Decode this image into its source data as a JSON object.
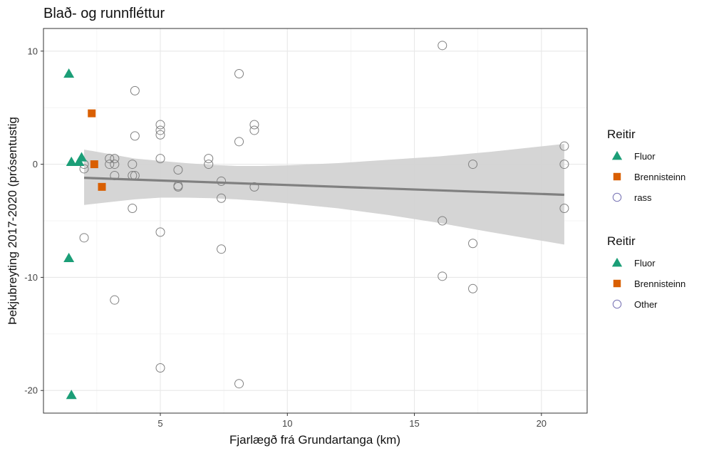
{
  "chart_data": {
    "type": "scatter",
    "title": "Blað- og runnfléttur",
    "xlabel": "Fjarlægð frá Grundartanga (km)",
    "ylabel": "Þekjubreyting 2017-2020 (prósentustig",
    "xlim": [
      0.4,
      21.8
    ],
    "ylim": [
      -22,
      12
    ],
    "xticks": [
      5,
      10,
      15,
      20
    ],
    "yticks": [
      -20,
      -10,
      0,
      10
    ],
    "grid": true,
    "colors": {
      "fluor": "#1b9e77",
      "brennisteinn": "#d95f02",
      "other": "#808080",
      "other_legend": "#7570b3",
      "trend": "#808080",
      "band": "#d3d3d3"
    },
    "series": [
      {
        "name": "Fluor",
        "marker": "triangle",
        "points": [
          [
            1.4,
            8.0
          ],
          [
            1.4,
            -8.3
          ],
          [
            1.5,
            -20.4
          ],
          [
            1.5,
            0.2
          ],
          [
            1.8,
            0.2
          ],
          [
            1.9,
            0.6
          ]
        ]
      },
      {
        "name": "Brennisteinn",
        "marker": "square",
        "points": [
          [
            2.3,
            4.5
          ],
          [
            2.4,
            0.0
          ],
          [
            2.7,
            -2.0
          ]
        ]
      },
      {
        "name": "rass",
        "marker": "circle-open",
        "points": [
          [
            2.0,
            -0.4
          ],
          [
            2.0,
            0.0
          ],
          [
            2.0,
            -6.5
          ],
          [
            3.0,
            0.5
          ],
          [
            3.0,
            0.0
          ],
          [
            3.2,
            0.5
          ],
          [
            3.2,
            0.0
          ],
          [
            3.2,
            -1.0
          ],
          [
            3.2,
            -12.0
          ],
          [
            3.9,
            0.0
          ],
          [
            3.9,
            -1.0
          ],
          [
            3.9,
            -3.9
          ],
          [
            4.0,
            -1.0
          ],
          [
            4.0,
            2.5
          ],
          [
            4.0,
            6.5
          ],
          [
            5.0,
            3.5
          ],
          [
            5.0,
            3.0
          ],
          [
            5.0,
            2.6
          ],
          [
            5.0,
            0.5
          ],
          [
            5.0,
            -6.0
          ],
          [
            5.0,
            -18.0
          ],
          [
            5.7,
            -0.5
          ],
          [
            5.7,
            -1.9
          ],
          [
            5.7,
            -2.0
          ],
          [
            6.9,
            0.5
          ],
          [
            6.9,
            0.0
          ],
          [
            7.4,
            -1.5
          ],
          [
            7.4,
            -3.0
          ],
          [
            7.4,
            -7.5
          ],
          [
            8.1,
            8.0
          ],
          [
            8.1,
            2.0
          ],
          [
            8.1,
            -19.4
          ],
          [
            8.7,
            3.5
          ],
          [
            8.7,
            3.0
          ],
          [
            8.7,
            -2.0
          ],
          [
            16.1,
            10.5
          ],
          [
            16.1,
            -5.0
          ],
          [
            16.1,
            -9.9
          ],
          [
            17.3,
            0.0
          ],
          [
            17.3,
            -7.0
          ],
          [
            17.3,
            -11.0
          ],
          [
            20.9,
            1.6
          ],
          [
            20.9,
            0.0
          ],
          [
            20.9,
            -3.9
          ]
        ]
      }
    ],
    "trend": {
      "x": [
        2.0,
        20.9
      ],
      "y": [
        -1.2,
        -2.7
      ]
    },
    "band": {
      "x": [
        2.0,
        3,
        4,
        5,
        6,
        7,
        8,
        9,
        10,
        12,
        14,
        16,
        18,
        20.9
      ],
      "upper": [
        1.3,
        0.9,
        0.5,
        0.3,
        0.1,
        -0.05,
        -0.15,
        -0.15,
        -0.1,
        0.1,
        0.4,
        0.7,
        1.1,
        1.8
      ],
      "lower": [
        -3.6,
        -3.35,
        -3.1,
        -2.95,
        -2.95,
        -3.0,
        -3.1,
        -3.25,
        -3.45,
        -3.9,
        -4.5,
        -5.2,
        -6.0,
        -7.1
      ]
    },
    "legends": [
      {
        "title": "Reitir",
        "items": [
          {
            "label": "Fluor",
            "marker": "triangle",
            "color": "#1b9e77"
          },
          {
            "label": "Brennisteinn",
            "marker": "square",
            "color": "#d95f02"
          },
          {
            "label": "rass",
            "marker": "circle-open",
            "color": "#7570b3"
          }
        ]
      },
      {
        "title": "Reitir",
        "items": [
          {
            "label": "Fluor",
            "marker": "triangle",
            "color": "#1b9e77"
          },
          {
            "label": "Brennisteinn",
            "marker": "square",
            "color": "#d95f02"
          },
          {
            "label": "Other",
            "marker": "circle-open",
            "color": "#7570b3"
          }
        ]
      }
    ]
  }
}
